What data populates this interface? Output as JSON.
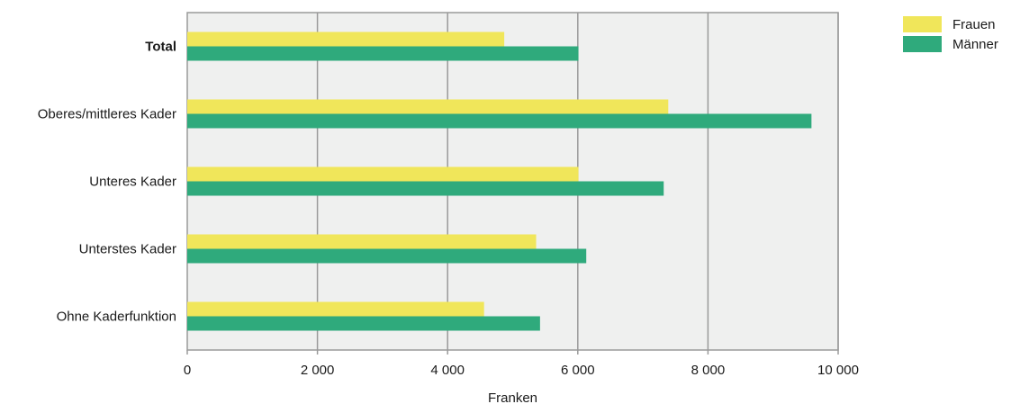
{
  "chart_data": {
    "type": "bar",
    "orientation": "horizontal",
    "categories": [
      "Total",
      "Oberes/mittleres Kader",
      "Unteres Kader",
      "Unterstes Kader",
      "Ohne Kaderfunktion"
    ],
    "emphasized_category": "Total",
    "series": [
      {
        "name": "Frauen",
        "color": "#f0e65a",
        "values": [
          4870,
          7390,
          6010,
          5360,
          4560
        ]
      },
      {
        "name": "Männer",
        "color": "#2faa7c",
        "values": [
          6010,
          9590,
          7320,
          6130,
          5420
        ]
      }
    ],
    "title": "",
    "xlabel": "Franken",
    "ylabel": "",
    "xlim": [
      0,
      10000
    ],
    "xticks": [
      0,
      2000,
      4000,
      6000,
      8000,
      10000
    ],
    "xtick_labels": [
      "0",
      "2 000",
      "4 000",
      "6 000",
      "8 000",
      "10 000"
    ],
    "grid": true,
    "plot_background": "#eff0ef",
    "grid_color": "#9a9a9a",
    "legend_position": "top-right"
  }
}
